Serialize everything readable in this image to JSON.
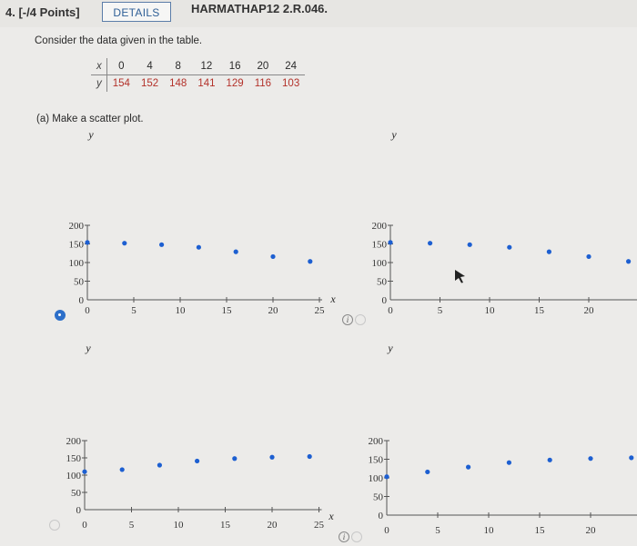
{
  "header": {
    "question_label": "4. [-/4 Points]",
    "details_button": "DETAILS",
    "problem_id": "HARMATHAP12 2.R.046."
  },
  "intro": "Consider the data given in the table.",
  "table": {
    "x_name": "x",
    "y_name": "y",
    "x_values": [
      "0",
      "4",
      "8",
      "12",
      "16",
      "20",
      "24"
    ],
    "y_values": [
      "154",
      "152",
      "148",
      "141",
      "129",
      "116",
      "103"
    ]
  },
  "part_a": "(a)  Make a scatter plot.",
  "info_icon_glyph": "i",
  "colors": {
    "point": "#1d5fd1",
    "selected_radio": "#2d6fc9",
    "table_values": "#b3312a"
  },
  "chart_data": [
    {
      "type": "scatter",
      "option": "top-left",
      "selected": true,
      "xlabel": "x",
      "ylabel": "y",
      "xlim": [
        0,
        25
      ],
      "ylim": [
        0,
        200
      ],
      "xticks": [
        "0",
        "5",
        "10",
        "15",
        "20",
        "25"
      ],
      "yticks": [
        "0",
        "50",
        "100",
        "150",
        "200"
      ],
      "x": [
        0,
        4,
        8,
        12,
        16,
        20,
        24
      ],
      "y": [
        154,
        152,
        148,
        141,
        129,
        116,
        103
      ]
    },
    {
      "type": "scatter",
      "option": "top-right",
      "selected": false,
      "xlabel": "",
      "ylabel": "y",
      "xlim": [
        0,
        25
      ],
      "ylim": [
        0,
        200
      ],
      "xticks": [
        "0",
        "5",
        "10",
        "15",
        "20"
      ],
      "yticks": [
        "0",
        "50",
        "100",
        "150",
        "200"
      ],
      "x": [
        0,
        4,
        8,
        12,
        16,
        20,
        24
      ],
      "y": [
        154,
        152,
        148,
        141,
        129,
        116,
        103
      ]
    },
    {
      "type": "scatter",
      "option": "bottom-left",
      "selected": false,
      "xlabel": "x",
      "ylabel": "y",
      "xlim": [
        0,
        25
      ],
      "ylim": [
        0,
        200
      ],
      "xticks": [
        "0",
        "5",
        "10",
        "15",
        "20",
        "25"
      ],
      "yticks": [
        "0",
        "50",
        "100",
        "150",
        "200"
      ],
      "x": [
        0,
        4,
        8,
        12,
        16,
        20,
        24
      ],
      "y": [
        110,
        116,
        129,
        141,
        148,
        152,
        154
      ]
    },
    {
      "type": "scatter",
      "option": "bottom-right",
      "selected": false,
      "xlabel": "",
      "ylabel": "y",
      "xlim": [
        0,
        25
      ],
      "ylim": [
        0,
        200
      ],
      "xticks": [
        "0",
        "5",
        "10",
        "15",
        "20"
      ],
      "yticks": [
        "0",
        "50",
        "100",
        "150",
        "200"
      ],
      "x": [
        0,
        4,
        8,
        12,
        16,
        20,
        24
      ],
      "y": [
        103,
        116,
        129,
        141,
        148,
        152,
        154
      ]
    }
  ]
}
